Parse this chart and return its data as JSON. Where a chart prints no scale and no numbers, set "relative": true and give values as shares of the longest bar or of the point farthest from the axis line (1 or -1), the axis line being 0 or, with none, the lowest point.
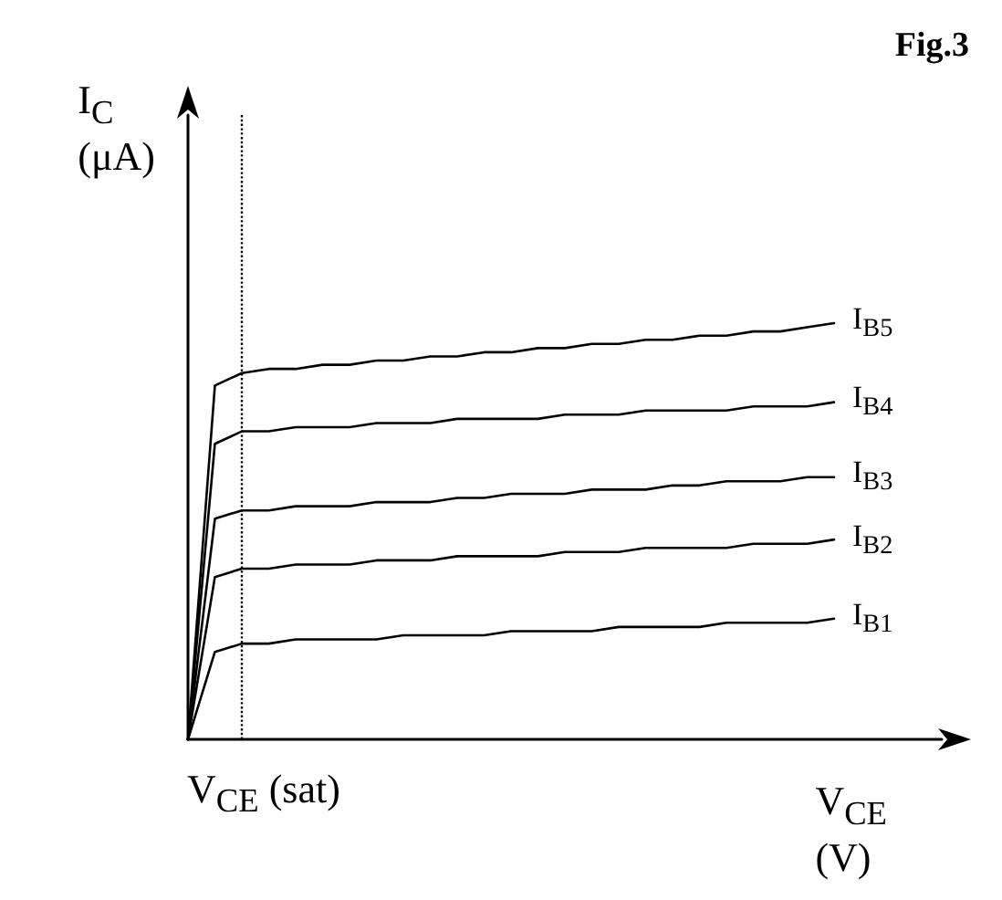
{
  "chart_data": {
    "type": "line",
    "relative": true,
    "title": "Fig.3",
    "xlabel": "V$_{CE}$ (V)",
    "ylabel": "I$_{C}$ (μA)",
    "grid": false,
    "marker": "none",
    "line_style": "solid",
    "categories": [
      null,
      null,
      null,
      null,
      null,
      null,
      null,
      null,
      null,
      null,
      null,
      null,
      null,
      null,
      null,
      null,
      null,
      null,
      null,
      null,
      null,
      null,
      null,
      null,
      null,
      null,
      null,
      null,
      null
    ],
    "series": [
      {
        "name": "I$_{B5}$",
        "color": "#000000",
        "values": [
          0,
          0.85,
          0.88,
          0.89,
          0.89,
          0.9,
          0.9,
          0.91,
          0.91,
          0.92,
          0.92,
          0.93,
          0.93,
          0.94,
          0.94,
          0.95,
          0.95,
          0.96,
          0.96,
          0.97,
          0.97,
          0.98,
          0.98,
          0.99,
          1.0,
          null,
          null,
          null,
          null
        ]
      },
      {
        "name": "I$_{B4}$",
        "color": "#000000",
        "values": [
          0,
          0.71,
          0.74,
          0.74,
          0.75,
          0.75,
          0.75,
          0.76,
          0.76,
          0.76,
          0.77,
          0.77,
          0.77,
          0.77,
          0.78,
          0.78,
          0.78,
          0.79,
          0.79,
          0.79,
          0.79,
          0.8,
          0.8,
          0.8,
          0.81,
          null,
          null,
          null,
          null
        ]
      },
      {
        "name": "I$_{B3}$",
        "color": "#000000",
        "values": [
          0,
          0.53,
          0.55,
          0.55,
          0.56,
          0.56,
          0.56,
          0.57,
          0.57,
          0.57,
          0.58,
          0.58,
          0.59,
          0.59,
          0.59,
          0.6,
          0.6,
          0.6,
          0.61,
          0.61,
          0.62,
          0.62,
          0.62,
          0.63,
          0.63,
          null,
          null,
          null,
          null
        ]
      },
      {
        "name": "I$_{B2}$",
        "color": "#000000",
        "values": [
          0,
          0.39,
          0.41,
          0.41,
          0.42,
          0.42,
          0.42,
          0.43,
          0.43,
          0.43,
          0.44,
          0.44,
          0.44,
          0.44,
          0.45,
          0.45,
          0.45,
          0.46,
          0.46,
          0.46,
          0.46,
          0.47,
          0.47,
          0.47,
          0.48,
          null,
          null,
          null,
          null
        ]
      },
      {
        "name": "I$_{B1}$",
        "color": "#000000",
        "values": [
          0,
          0.21,
          0.23,
          0.23,
          0.24,
          0.24,
          0.24,
          0.24,
          0.25,
          0.25,
          0.25,
          0.25,
          0.26,
          0.26,
          0.26,
          0.26,
          0.27,
          0.27,
          0.27,
          0.27,
          0.28,
          0.28,
          0.28,
          0.28,
          0.29,
          null,
          null,
          null,
          null
        ]
      }
    ],
    "annotations": [
      "V$_{CE}$ (sat)"
    ]
  }
}
